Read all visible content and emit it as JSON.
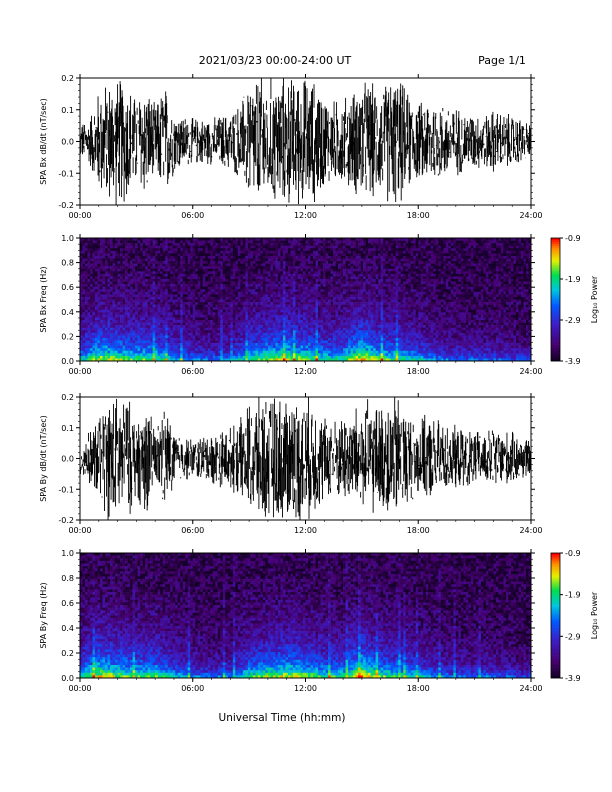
{
  "header": {
    "title": "2021/03/23  00:00-24:00 UT",
    "page": "Page 1/1"
  },
  "xlabel": "Universal Time (hh:mm)",
  "chart_data": [
    {
      "type": "line",
      "id": "bx-waveform",
      "ylabel": "SPA Bx dB/dt (nT/sec)",
      "xlim": [
        0,
        24
      ],
      "ylim": [
        -0.2,
        0.2
      ],
      "yticks": [
        "0.2",
        "0.1",
        "0.0",
        "-0.1",
        "-0.2"
      ],
      "xticks": [
        "00:00",
        "06:00",
        "12:00",
        "18:00",
        "24:00"
      ],
      "series": [
        {
          "hours": [
            0.0,
            0.5,
            1.0,
            1.5,
            2.0,
            2.5,
            3.0,
            3.5,
            4.0,
            4.5,
            5.0,
            5.5,
            6.0,
            6.5,
            7.0,
            7.5,
            8.0,
            8.5,
            9.0,
            9.5,
            10.0,
            10.5,
            11.0,
            11.5,
            12.0,
            12.5,
            13.0,
            13.5,
            14.0,
            14.5,
            15.0,
            15.5,
            16.0,
            16.5,
            17.0,
            17.5,
            18.0,
            18.5,
            19.0,
            19.5,
            20.0,
            20.5,
            21.0,
            21.5,
            22.0,
            22.5,
            23.0,
            23.5,
            24.0
          ],
          "envelope": [
            0.06,
            0.08,
            0.18,
            0.21,
            0.22,
            0.21,
            0.15,
            0.2,
            0.12,
            0.2,
            0.11,
            0.09,
            0.08,
            0.08,
            0.08,
            0.09,
            0.1,
            0.13,
            0.21,
            0.22,
            0.22,
            0.22,
            0.22,
            0.22,
            0.22,
            0.21,
            0.16,
            0.14,
            0.15,
            0.17,
            0.21,
            0.2,
            0.18,
            0.22,
            0.22,
            0.16,
            0.13,
            0.15,
            0.14,
            0.13,
            0.12,
            0.1,
            0.1,
            0.09,
            0.11,
            0.1,
            0.09,
            0.08,
            0.06
          ]
        }
      ]
    },
    {
      "type": "heatmap",
      "id": "bx-spectrogram",
      "ylabel": "SPA Bx Freq (Hz)",
      "xlim": [
        0,
        24
      ],
      "ylim": [
        0.0,
        1.0
      ],
      "yticks": [
        "1.0",
        "0.8",
        "0.6",
        "0.4",
        "0.2",
        "0.0"
      ],
      "xticks": [
        "00:00",
        "06:00",
        "12:00",
        "18:00",
        "24:00"
      ],
      "colorbar": {
        "label": "Log₁₀ Power",
        "ticks": [
          "-0.9",
          "-1.9",
          "-2.9",
          "-3.9"
        ],
        "range": [
          -3.9,
          -0.9
        ]
      },
      "activity_hours": [
        0.0,
        1.0,
        2.0,
        3.0,
        4.0,
        5.0,
        6.0,
        7.0,
        8.0,
        9.0,
        10.0,
        11.0,
        12.0,
        13.0,
        14.0,
        15.0,
        16.0,
        17.0,
        18.0,
        19.0,
        20.0,
        21.0,
        22.0,
        23.0,
        24.0
      ],
      "activity_level": [
        0.35,
        0.6,
        0.55,
        0.5,
        0.5,
        0.35,
        0.25,
        0.2,
        0.25,
        0.45,
        0.55,
        0.6,
        0.55,
        0.45,
        0.45,
        0.7,
        0.5,
        0.45,
        0.35,
        0.25,
        0.2,
        0.2,
        0.2,
        0.15,
        0.1
      ]
    },
    {
      "type": "line",
      "id": "by-waveform",
      "ylabel": "SPA By dB/dt (nT/sec)",
      "xlim": [
        0,
        24
      ],
      "ylim": [
        -0.2,
        0.2
      ],
      "yticks": [
        "0.2",
        "0.1",
        "0.0",
        "-0.1",
        "-0.2"
      ],
      "xticks": [
        "00:00",
        "06:00",
        "12:00",
        "18:00",
        "24:00"
      ],
      "series": [
        {
          "hours": [
            0.0,
            0.5,
            1.0,
            1.5,
            2.0,
            2.5,
            3.0,
            3.5,
            4.0,
            4.5,
            5.0,
            5.5,
            6.0,
            6.5,
            7.0,
            7.5,
            8.0,
            8.5,
            9.0,
            9.5,
            10.0,
            10.5,
            11.0,
            11.5,
            12.0,
            12.5,
            13.0,
            13.5,
            14.0,
            14.5,
            15.0,
            15.5,
            16.0,
            16.5,
            17.0,
            17.5,
            18.0,
            18.5,
            19.0,
            19.5,
            20.0,
            20.5,
            21.0,
            21.5,
            22.0,
            22.5,
            23.0,
            23.5,
            24.0
          ],
          "envelope": [
            0.07,
            0.09,
            0.15,
            0.22,
            0.22,
            0.22,
            0.14,
            0.2,
            0.11,
            0.19,
            0.1,
            0.08,
            0.07,
            0.08,
            0.09,
            0.1,
            0.11,
            0.13,
            0.2,
            0.22,
            0.22,
            0.22,
            0.22,
            0.22,
            0.22,
            0.2,
            0.15,
            0.14,
            0.15,
            0.17,
            0.2,
            0.2,
            0.18,
            0.22,
            0.22,
            0.16,
            0.13,
            0.15,
            0.14,
            0.12,
            0.11,
            0.1,
            0.1,
            0.09,
            0.11,
            0.1,
            0.09,
            0.08,
            0.06
          ]
        }
      ]
    },
    {
      "type": "heatmap",
      "id": "by-spectrogram",
      "ylabel": "SPA By Freq (Hz)",
      "xlim": [
        0,
        24
      ],
      "ylim": [
        0.0,
        1.0
      ],
      "yticks": [
        "1.0",
        "0.8",
        "0.6",
        "0.4",
        "0.2",
        "0.0"
      ],
      "xticks": [
        "00:00",
        "06:00",
        "12:00",
        "18:00",
        "24:00"
      ],
      "colorbar": {
        "label": "Log₁₀ Power",
        "ticks": [
          "-0.9",
          "-1.9",
          "-2.9",
          "-3.9"
        ],
        "range": [
          -3.9,
          -0.9
        ]
      },
      "activity_hours": [
        0.0,
        1.0,
        2.0,
        3.0,
        4.0,
        5.0,
        6.0,
        7.0,
        8.0,
        9.0,
        10.0,
        11.0,
        12.0,
        13.0,
        14.0,
        15.0,
        16.0,
        17.0,
        18.0,
        19.0,
        20.0,
        21.0,
        22.0,
        23.0,
        24.0
      ],
      "activity_level": [
        0.4,
        0.65,
        0.55,
        0.5,
        0.5,
        0.35,
        0.25,
        0.2,
        0.25,
        0.45,
        0.55,
        0.6,
        0.55,
        0.45,
        0.45,
        0.7,
        0.5,
        0.45,
        0.35,
        0.25,
        0.2,
        0.2,
        0.2,
        0.15,
        0.1
      ]
    }
  ]
}
